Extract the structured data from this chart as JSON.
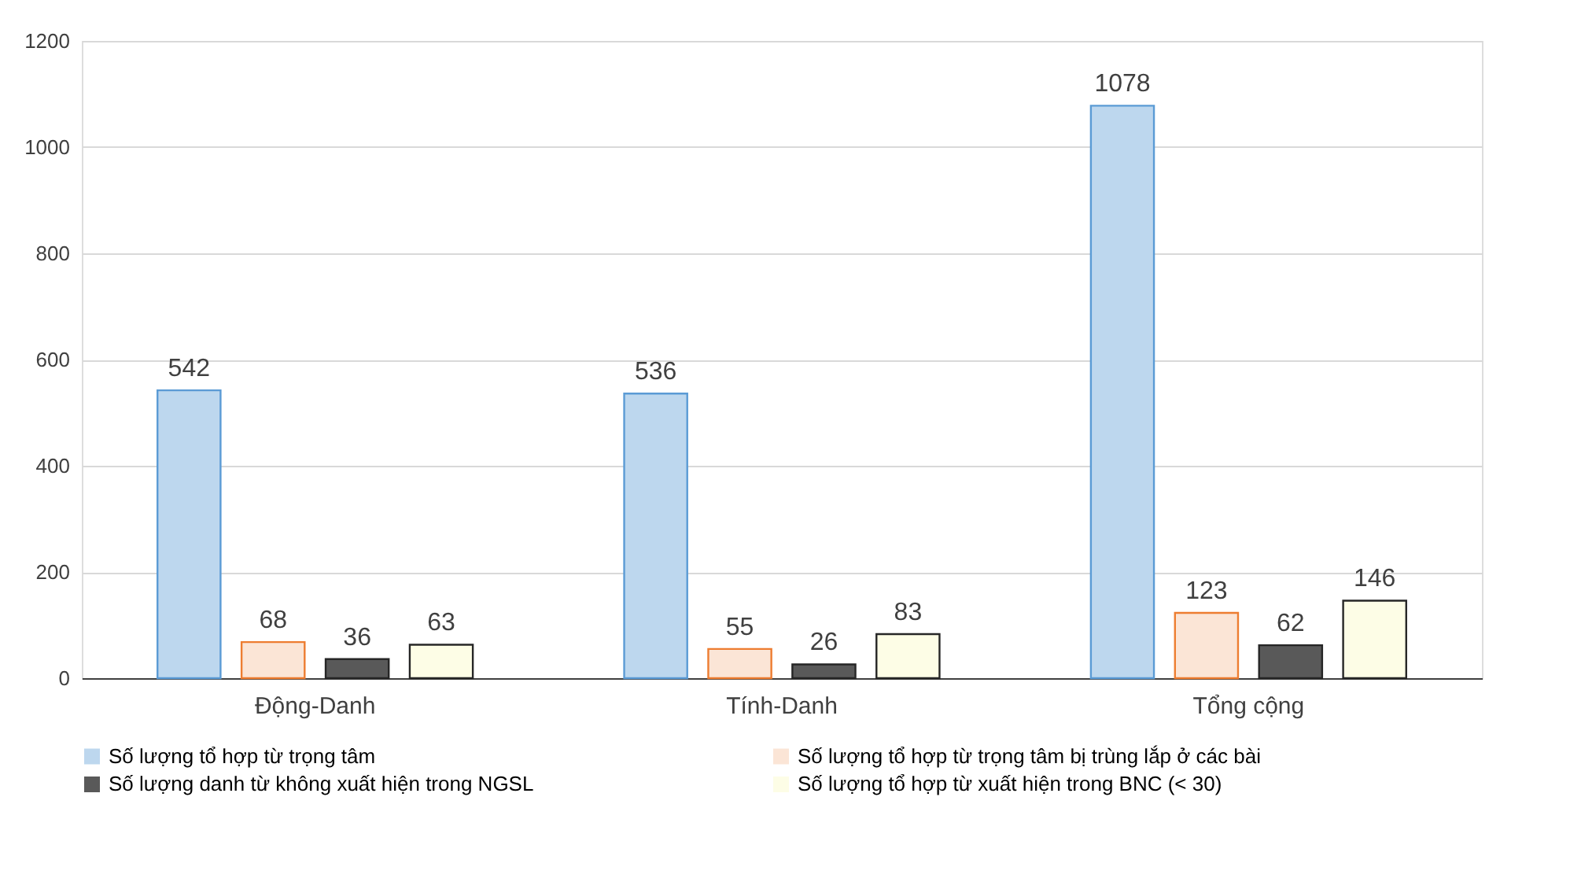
{
  "chart_data": {
    "type": "bar",
    "categories": [
      "Động-Danh",
      "Tính-Danh",
      "Tổng cộng"
    ],
    "series": [
      {
        "name": "Số lượng tổ hợp từ trọng tâm",
        "color": "#bdd7ee",
        "values": [
          542,
          536,
          1078
        ]
      },
      {
        "name": "Số lượng tổ hợp từ trọng tâm bị trùng lắp ở các bài",
        "color": "#fbe5d6",
        "values": [
          68,
          55,
          123
        ]
      },
      {
        "name": "Số lượng danh từ không xuất hiện trong NGSL",
        "color": "#595959",
        "values": [
          36,
          26,
          62
        ]
      },
      {
        "name": "Số lượng tổ hợp từ xuất hiện trong BNC (< 30)",
        "color": "#fdfde6",
        "values": [
          63,
          83,
          146
        ]
      }
    ],
    "ylim": [
      0,
      1200
    ],
    "yticks": [
      0,
      200,
      400,
      600,
      800,
      1000,
      1200
    ],
    "grid": "y",
    "legend": "bottom",
    "data_labels": true
  }
}
